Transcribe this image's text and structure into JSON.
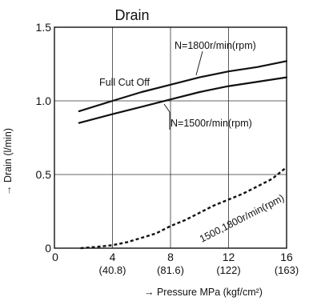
{
  "chart_data": {
    "type": "line",
    "title": "Drain",
    "xlabel": "→ Pressure MPa (kgf/cm²)",
    "ylabel": "→ Drain (l/min)",
    "xlim": [
      0,
      16
    ],
    "ylim": [
      0,
      1.5
    ],
    "grid": true,
    "x_ticks": [
      {
        "value": 0,
        "label": "0",
        "sub": ""
      },
      {
        "value": 4,
        "label": "4",
        "sub": "(40.8)"
      },
      {
        "value": 8,
        "label": "8",
        "sub": "(81.6)"
      },
      {
        "value": 12,
        "label": "12",
        "sub": "(122)"
      },
      {
        "value": 16,
        "label": "16",
        "sub": "(163)"
      }
    ],
    "y_ticks": [
      {
        "value": 0,
        "label": "0"
      },
      {
        "value": 0.5,
        "label": "0.5"
      },
      {
        "value": 1.0,
        "label": "1.0"
      },
      {
        "value": 1.5,
        "label": "1.5"
      }
    ],
    "series": [
      {
        "name": "N=1800r/min(rpm)",
        "style": "solid",
        "color": "#111111",
        "x": [
          1.7,
          4,
          6,
          8,
          10,
          12,
          14,
          16
        ],
        "y": [
          0.93,
          1.0,
          1.06,
          1.11,
          1.16,
          1.2,
          1.23,
          1.27
        ]
      },
      {
        "name": "N=1500r/min(rpm)",
        "style": "solid",
        "color": "#111111",
        "x": [
          1.7,
          4,
          6,
          8,
          10,
          12,
          14,
          16
        ],
        "y": [
          0.85,
          0.91,
          0.96,
          1.01,
          1.06,
          1.1,
          1.13,
          1.16
        ]
      },
      {
        "name": "1500,1800r/min(rpm)",
        "style": "dashed",
        "color": "#111111",
        "x": [
          1.8,
          3,
          4,
          5,
          6,
          7,
          8,
          9,
          10,
          11,
          12,
          13,
          14,
          15,
          16
        ],
        "y": [
          0.0,
          0.01,
          0.02,
          0.04,
          0.07,
          0.1,
          0.15,
          0.19,
          0.24,
          0.29,
          0.33,
          0.37,
          0.42,
          0.47,
          0.55
        ]
      }
    ],
    "annotations": {
      "full_cut_off": "Full Cut Off"
    }
  }
}
